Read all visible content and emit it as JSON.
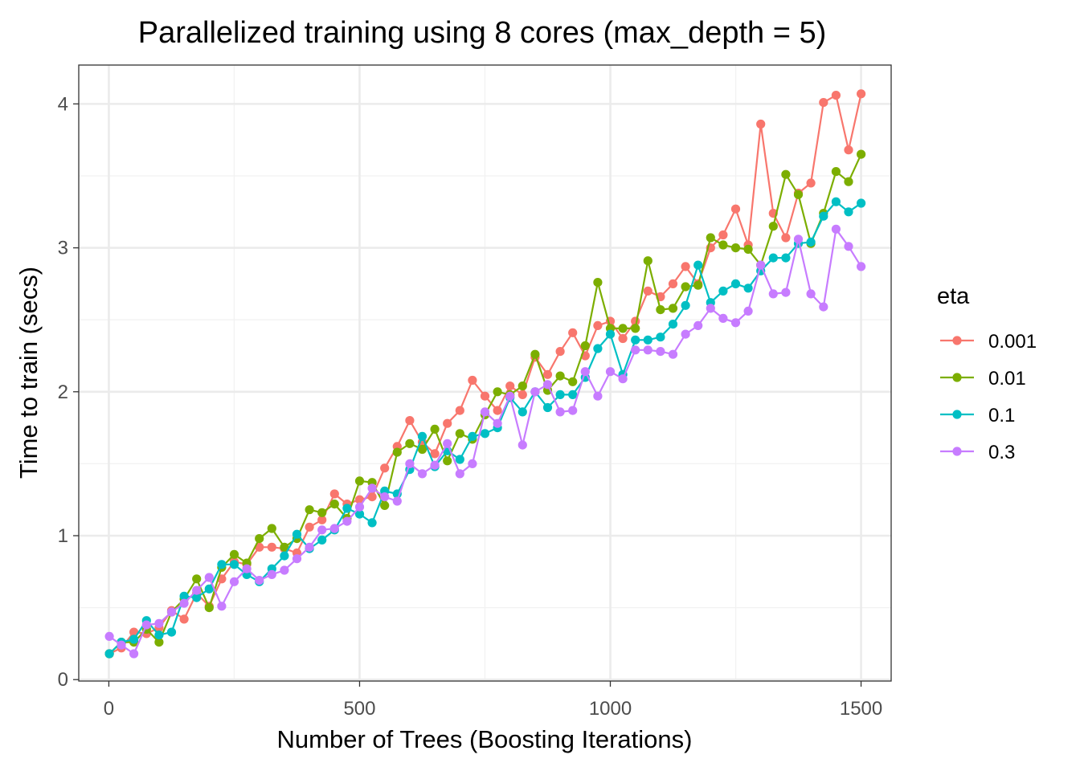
{
  "chart_data": {
    "type": "line",
    "title": "Parallelized training using 8 cores (max_depth = 5)",
    "xlabel": "Number of Trees (Boosting Iterations)",
    "ylabel": "Time to train (secs)",
    "xlim": [
      -60,
      1560
    ],
    "ylim": [
      -0.01,
      4.27
    ],
    "xticks": [
      0,
      500,
      1000,
      1500
    ],
    "yticks": [
      0,
      1,
      2,
      3,
      4
    ],
    "grid": true,
    "legend": {
      "title": "eta",
      "position": "right"
    },
    "x": [
      1,
      25,
      50,
      75,
      100,
      125,
      150,
      175,
      200,
      225,
      250,
      275,
      300,
      325,
      350,
      375,
      400,
      425,
      450,
      475,
      500,
      525,
      550,
      575,
      600,
      625,
      650,
      675,
      700,
      725,
      750,
      775,
      800,
      825,
      850,
      875,
      900,
      925,
      950,
      975,
      1000,
      1025,
      1050,
      1075,
      1100,
      1125,
      1150,
      1175,
      1200,
      1225,
      1250,
      1275,
      1300,
      1325,
      1350,
      1375,
      1400,
      1425,
      1450,
      1475,
      1500
    ],
    "series": [
      {
        "name": "0.001",
        "color": "#F8766D",
        "values": [
          0.18,
          0.22,
          0.33,
          0.32,
          0.36,
          0.48,
          0.42,
          0.6,
          0.51,
          0.7,
          0.82,
          0.8,
          0.92,
          0.92,
          0.91,
          0.88,
          1.06,
          1.11,
          1.29,
          1.22,
          1.25,
          1.27,
          1.47,
          1.62,
          1.8,
          1.65,
          1.57,
          1.78,
          1.87,
          2.08,
          1.97,
          1.87,
          2.04,
          1.98,
          2.24,
          2.12,
          2.28,
          2.41,
          2.25,
          2.46,
          2.49,
          2.37,
          2.49,
          2.7,
          2.66,
          2.75,
          2.87,
          2.75,
          3.0,
          3.09,
          3.27,
          3.02,
          3.86,
          3.24,
          3.07,
          3.38,
          3.45,
          4.01,
          4.06,
          3.68,
          4.07
        ]
      },
      {
        "name": "0.01",
        "color": "#7CAE00",
        "values": [
          0.18,
          0.26,
          0.26,
          0.35,
          0.26,
          0.47,
          0.56,
          0.7,
          0.5,
          0.78,
          0.87,
          0.81,
          0.98,
          1.05,
          0.92,
          0.98,
          1.18,
          1.16,
          1.22,
          1.12,
          1.38,
          1.37,
          1.21,
          1.58,
          1.64,
          1.6,
          1.74,
          1.52,
          1.71,
          1.67,
          1.84,
          2.0,
          1.98,
          2.04,
          2.26,
          2.01,
          2.11,
          2.07,
          2.32,
          2.76,
          2.44,
          2.44,
          2.44,
          2.91,
          2.57,
          2.58,
          2.73,
          2.74,
          3.07,
          3.02,
          3.0,
          2.99,
          2.88,
          3.15,
          3.51,
          3.37,
          3.03,
          3.24,
          3.53,
          3.46,
          3.65
        ]
      },
      {
        "name": "0.1",
        "color": "#00BFC4",
        "values": [
          0.18,
          0.26,
          0.28,
          0.41,
          0.31,
          0.33,
          0.58,
          0.57,
          0.63,
          0.8,
          0.8,
          0.73,
          0.68,
          0.77,
          0.86,
          1.01,
          0.91,
          0.97,
          1.04,
          1.19,
          1.15,
          1.09,
          1.31,
          1.29,
          1.46,
          1.69,
          1.48,
          1.59,
          1.53,
          1.69,
          1.71,
          1.75,
          1.96,
          1.86,
          2.0,
          1.89,
          1.98,
          1.98,
          2.1,
          2.3,
          2.4,
          2.12,
          2.36,
          2.36,
          2.38,
          2.47,
          2.6,
          2.88,
          2.62,
          2.7,
          2.75,
          2.72,
          2.84,
          2.93,
          2.93,
          3.03,
          3.04,
          3.22,
          3.32,
          3.25,
          3.31
        ]
      },
      {
        "name": "0.3",
        "color": "#C77CFF",
        "values": [
          0.3,
          0.24,
          0.18,
          0.38,
          0.39,
          0.47,
          0.53,
          0.62,
          0.71,
          0.51,
          0.68,
          0.77,
          0.69,
          0.73,
          0.76,
          0.84,
          0.92,
          1.04,
          1.05,
          1.1,
          1.2,
          1.33,
          1.27,
          1.24,
          1.5,
          1.43,
          1.49,
          1.64,
          1.43,
          1.5,
          1.86,
          1.78,
          1.97,
          1.63,
          2.0,
          2.05,
          1.86,
          1.87,
          2.14,
          1.97,
          2.14,
          2.09,
          2.29,
          2.29,
          2.28,
          2.26,
          2.4,
          2.46,
          2.58,
          2.51,
          2.48,
          2.56,
          2.88,
          2.68,
          2.69,
          3.06,
          2.68,
          2.59,
          3.13,
          3.01,
          2.87
        ]
      }
    ]
  }
}
